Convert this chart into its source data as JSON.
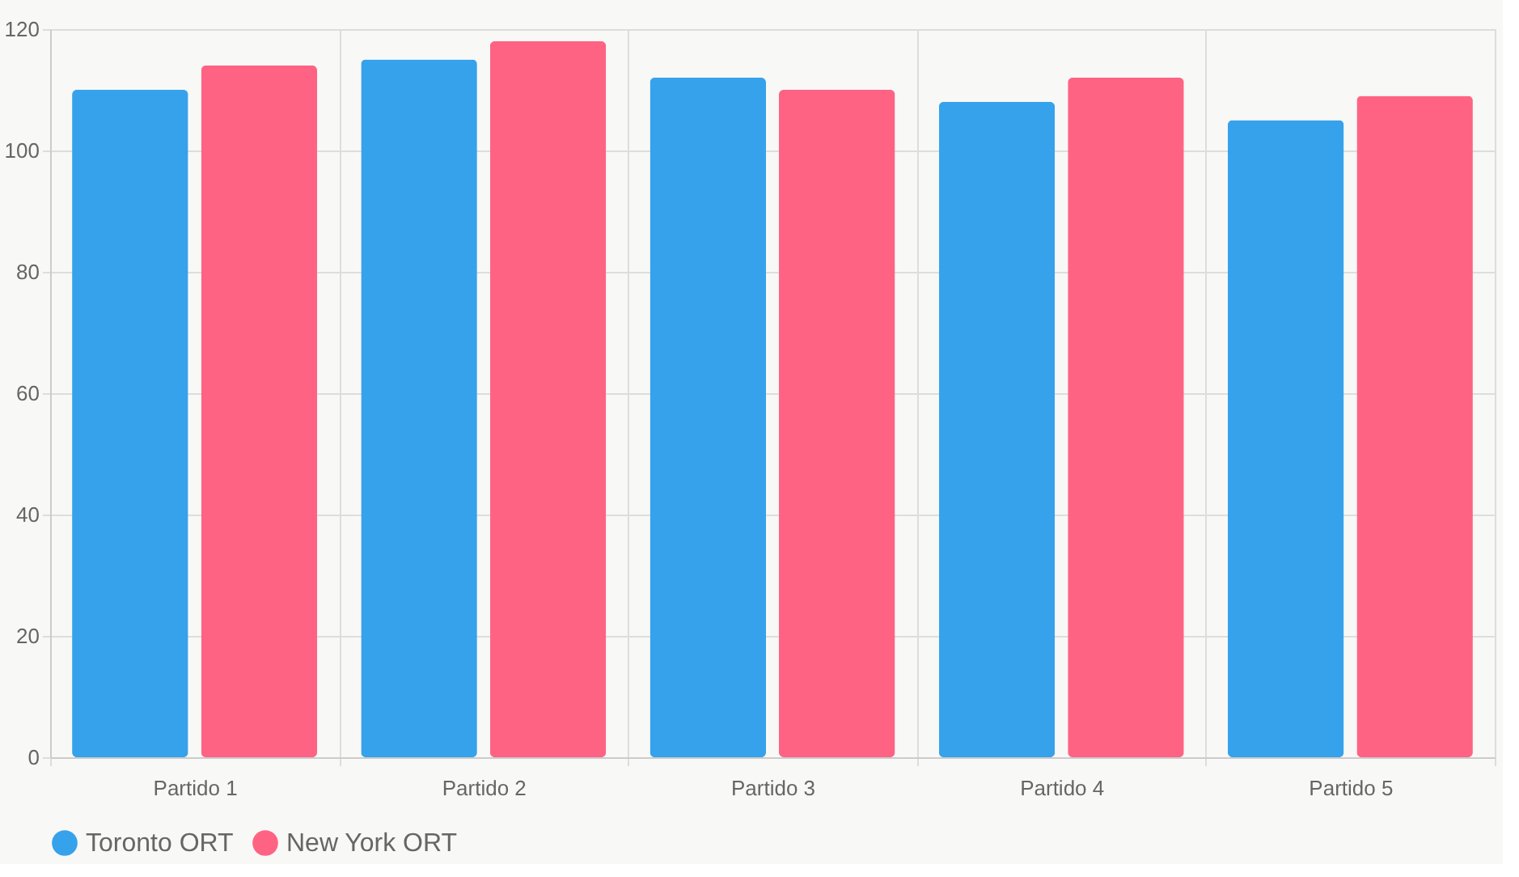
{
  "chart_data": {
    "type": "bar",
    "categories": [
      "Partido 1",
      "Partido 2",
      "Partido 3",
      "Partido 4",
      "Partido 5"
    ],
    "series": [
      {
        "name": "Toronto ORT",
        "color": "#36a2eb",
        "values": [
          110,
          115,
          112,
          108,
          105
        ]
      },
      {
        "name": "New York ORT",
        "color": "#ff6384",
        "values": [
          114,
          118,
          110,
          112,
          109
        ]
      }
    ],
    "ylim": [
      0,
      120
    ],
    "yticks": [
      0,
      20,
      40,
      60,
      80,
      100,
      120
    ],
    "grid": true,
    "legend": "bottom"
  }
}
